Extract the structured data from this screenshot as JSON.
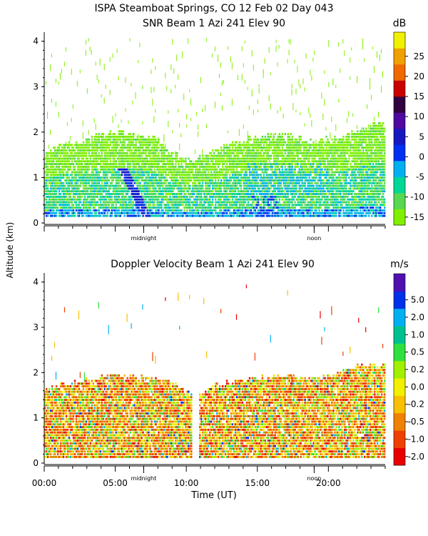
{
  "header": {
    "line1": "ISPA Steamboat Springs, CO   12 Feb 02 Day 043"
  },
  "colors": {
    "snr": [
      "#80f000",
      "#58d850",
      "#00d898",
      "#00b0f0",
      "#0030f0",
      "#1818c0",
      "#5008a0",
      "#300040",
      "#c80000",
      "#f06800",
      "#f0a000",
      "#f0f000"
    ],
    "vel": [
      "#e80000",
      "#f04000",
      "#f08000",
      "#f8c000",
      "#f0f000",
      "#a0f000",
      "#30e040",
      "#00c090",
      "#00b0f0",
      "#0030e8",
      "#5010b0",
      "#400040"
    ]
  },
  "chart_data": [
    {
      "type": "heatmap",
      "title": "SNR Beam 1 Azi 241 Elev 90",
      "xlabel": "",
      "ylabel": "Altitude (km)",
      "ylim": [
        0,
        4.2
      ],
      "yticks": [
        0,
        1,
        2,
        3,
        4
      ],
      "xlim": [
        0,
        24
      ],
      "time_markers": [
        {
          "label": "midnight",
          "hour": 7
        },
        {
          "label": "noon",
          "hour": 19
        }
      ],
      "colorbar": {
        "unit": "dB",
        "levels": [
          -15,
          -10,
          -5,
          0,
          5,
          10,
          15,
          20,
          25
        ],
        "labels": [
          "-15",
          "-10",
          "-5",
          "0",
          "5",
          "10",
          "15",
          "20",
          "25"
        ],
        "range": [
          -17,
          31
        ]
      },
      "layer_top_km": [
        1.5,
        1.65,
        1.7,
        1.8,
        1.9,
        1.95,
        1.9,
        1.85,
        1.8,
        1.5,
        1.3,
        1.4,
        1.6,
        1.7,
        1.8,
        1.85,
        1.9,
        1.9,
        1.8,
        1.75,
        1.8,
        1.9,
        2.0,
        2.1,
        2.1
      ]
    },
    {
      "type": "heatmap",
      "title": "Doppler Velocity Beam 1 Azi 241 Elev 90",
      "xlabel": "Time (UT)",
      "ylabel": "Altitude (km)",
      "ylim": [
        0,
        4.2
      ],
      "yticks": [
        0,
        1,
        2,
        3,
        4
      ],
      "xlim": [
        0,
        24
      ],
      "xticks": [
        {
          "label": "00:00",
          "hour": 0
        },
        {
          "label": "05:00",
          "hour": 5
        },
        {
          "label": "10:00",
          "hour": 10
        },
        {
          "label": "15:00",
          "hour": 15
        },
        {
          "label": "20:00",
          "hour": 20
        }
      ],
      "time_markers": [
        {
          "label": "midnight",
          "hour": 7
        },
        {
          "label": "noon",
          "hour": 19
        }
      ],
      "data_gap_hours": [
        10.3,
        10.8
      ],
      "colorbar": {
        "unit": "m/s",
        "levels": [
          -2.0,
          -1.0,
          -0.5,
          -0.2,
          0.0,
          0.2,
          0.5,
          1.0,
          2.0,
          5.0
        ],
        "labels": [
          "-2.0",
          "-1.0",
          "-0.5",
          "-0.2",
          "0.0",
          "0.2",
          "0.5",
          "1.0",
          "2.0",
          "5.0"
        ]
      },
      "layer_top_km": [
        1.6,
        1.7,
        1.75,
        1.8,
        1.85,
        1.9,
        1.85,
        1.85,
        1.8,
        1.75,
        1.5,
        1.5,
        1.7,
        1.75,
        1.8,
        1.85,
        1.85,
        1.9,
        1.85,
        1.85,
        1.9,
        2.0,
        2.1,
        2.1,
        2.1
      ]
    }
  ]
}
